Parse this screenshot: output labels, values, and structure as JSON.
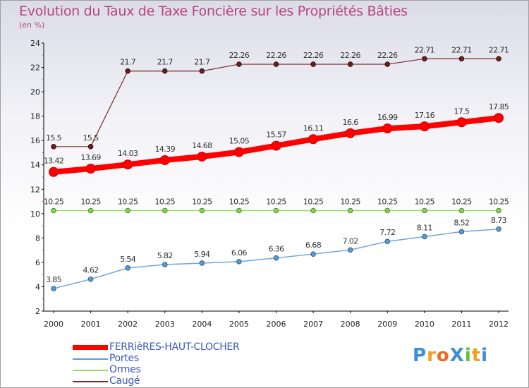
{
  "chart_data": {
    "type": "line",
    "title": "Evolution du Taux de Taxe Foncière sur les Propriétés Bâties",
    "ylabel": "(en %)",
    "xlabel": "",
    "ylim": [
      2,
      24
    ],
    "y_ticks": [
      "2",
      "4",
      "6",
      "8",
      "10",
      "12",
      "14",
      "16",
      "18",
      "20",
      "22",
      "24"
    ],
    "categories": [
      "2000",
      "2001",
      "2002",
      "2003",
      "2004",
      "2005",
      "2006",
      "2007",
      "2008",
      "2009",
      "2010",
      "2011",
      "2012"
    ],
    "series": [
      {
        "name": "FERRièRES-HAUT-CLOCHER",
        "color": "#ff0000",
        "values": [
          13.42,
          13.69,
          14.03,
          14.39,
          14.68,
          15.05,
          15.57,
          16.11,
          16.6,
          16.99,
          17.16,
          17.5,
          17.85
        ],
        "labels": [
          "13.42",
          "13.69",
          "14.03",
          "14.39",
          "14.68",
          "15.05",
          "15.57",
          "16.11",
          "16.6",
          "16.99",
          "17.16",
          "17.5",
          "17.85"
        ]
      },
      {
        "name": "Portes",
        "color": "#5b9bd5",
        "values": [
          3.85,
          4.62,
          5.54,
          5.82,
          5.94,
          6.06,
          6.36,
          6.68,
          7.02,
          7.72,
          8.11,
          8.52,
          8.73
        ],
        "labels": [
          "3.85",
          "4.62",
          "5.54",
          "5.82",
          "5.94",
          "6.06",
          "6.36",
          "6.68",
          "7.02",
          "7.72",
          "8.11",
          "8.52",
          "8.73"
        ]
      },
      {
        "name": "Ormes",
        "color": "#99dd66",
        "values": [
          10.25,
          10.25,
          10.25,
          10.25,
          10.25,
          10.25,
          10.25,
          10.25,
          10.25,
          10.25,
          10.25,
          10.25,
          10.25
        ],
        "labels": [
          "10.25",
          "10.25",
          "10.25",
          "10.25",
          "10.25",
          "10.25",
          "10.25",
          "10.25",
          "10.25",
          "10.25",
          "10.25",
          "10.25",
          "10.25"
        ]
      },
      {
        "name": "Caugé",
        "color": "#7a2b2b",
        "values": [
          15.5,
          15.5,
          21.7,
          21.7,
          21.7,
          22.26,
          22.26,
          22.26,
          22.26,
          22.26,
          22.71,
          22.71,
          22.71
        ],
        "labels": [
          "15.5",
          "15.5",
          "21.7",
          "21.7",
          "21.7",
          "22.26",
          "22.26",
          "22.26",
          "22.26",
          "22.26",
          "22.71",
          "22.71",
          "22.71"
        ]
      }
    ],
    "legend_position": "bottom-left",
    "grid": false
  },
  "logo": {
    "text": "ProXiti"
  }
}
